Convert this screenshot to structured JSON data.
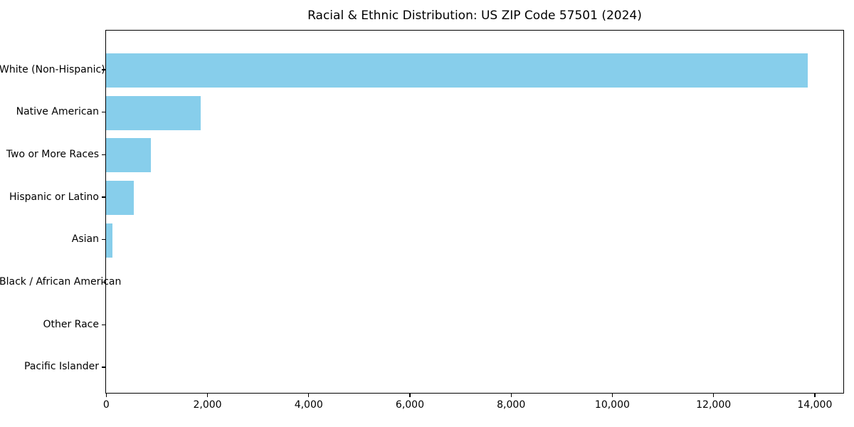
{
  "title": "Racial & Ethnic Distribution: US ZIP Code 57501 (2024)",
  "chart_data": {
    "type": "bar",
    "orientation": "horizontal",
    "title": "Racial & Ethnic Distribution: US ZIP Code 57501 (2024)",
    "xlabel": "",
    "ylabel": "",
    "categories": [
      "White (Non-Hispanic)",
      "Native American",
      "Two or More Races",
      "Hispanic or Latino",
      "Asian",
      "Black / African American",
      "Other Race",
      "Pacific Islander"
    ],
    "values": [
      13870,
      1870,
      890,
      555,
      120,
      0,
      0,
      0
    ],
    "xlim": [
      0,
      14560
    ],
    "x_ticks": [
      0,
      2000,
      4000,
      6000,
      8000,
      10000,
      12000,
      14000
    ],
    "x_tick_labels": [
      "0",
      "2,000",
      "4,000",
      "6,000",
      "8,000",
      "10,000",
      "12,000",
      "14,000"
    ],
    "bar_color": "#87CEEB",
    "background_color": "#ffffff",
    "grid": false,
    "legend": null
  }
}
